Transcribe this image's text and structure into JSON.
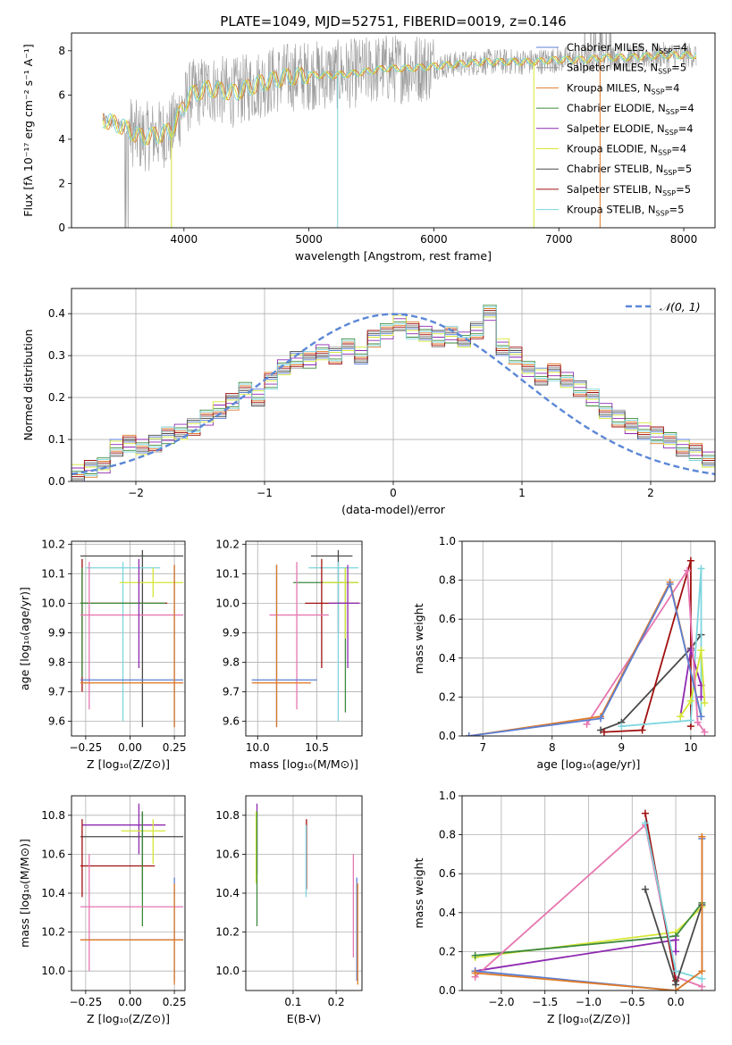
{
  "figure_title": "PLATE=1049, MJD=52751, FIBERID=0019, z=0.146",
  "colors": {
    "Chabrier MILES": "#5b7fd3",
    "Salpeter MILES": "#9a9a9a",
    "Kroupa MILES": "#e07b28",
    "Chabrier ELODIE": "#3c8a3c",
    "Salpeter ELODIE": "#8e2ab0",
    "Kroupa ELODIE": "#d5e635",
    "Chabrier STELIB": "#4a4a4a",
    "Salpeter STELIB": "#a01010",
    "Kroupa STELIB": "#7dd5de",
    "pink": "#e676b0",
    "normal": "#5b87d6"
  },
  "chart_data": [
    {
      "id": "spectrum",
      "type": "line",
      "xlabel": "wavelength [Angstrom, rest frame]",
      "ylabel": "Flux [fλ 10⁻¹⁷ erg cm⁻² s⁻¹ A⁻¹]",
      "xlim": [
        3100,
        8250
      ],
      "ylim": [
        0,
        8.8
      ],
      "xticks": [
        4000,
        5000,
        6000,
        7000,
        8000
      ],
      "yticks": [
        0,
        2,
        4,
        6,
        8
      ],
      "grid": false,
      "legend_position": "right",
      "legend": [
        {
          "name": "Chabrier MILES",
          "sub": "N",
          "subs": "SSP",
          "val": "=4"
        },
        {
          "name": "Salpeter MILES",
          "sub": "N",
          "subs": "SSP",
          "val": "=5"
        },
        {
          "name": "Kroupa MILES",
          "sub": "N",
          "subs": "SSP",
          "val": "=4"
        },
        {
          "name": "Chabrier ELODIE",
          "sub": "N",
          "subs": "SSP",
          "val": "=4"
        },
        {
          "name": "Salpeter ELODIE",
          "sub": "N",
          "subs": "SSP",
          "val": "=4"
        },
        {
          "name": "Kroupa ELODIE",
          "sub": "N",
          "subs": "SSP",
          "val": "=4"
        },
        {
          "name": "Chabrier STELIB",
          "sub": "N",
          "subs": "SSP",
          "val": "=5"
        },
        {
          "name": "Salpeter STELIB",
          "sub": "N",
          "subs": "SSP",
          "val": "=5"
        },
        {
          "name": "Kroupa STELIB",
          "sub": "N",
          "subs": "SSP",
          "val": "=5"
        }
      ],
      "model_continuum": [
        [
          3350,
          4.9
        ],
        [
          3500,
          4.6
        ],
        [
          3650,
          4.1
        ],
        [
          3800,
          4.2
        ],
        [
          3900,
          4.4
        ],
        [
          3950,
          5.0
        ],
        [
          4050,
          6.0
        ],
        [
          4200,
          6.3
        ],
        [
          4400,
          6.1
        ],
        [
          4600,
          6.5
        ],
        [
          4800,
          6.8
        ],
        [
          5000,
          6.9
        ],
        [
          5200,
          6.9
        ],
        [
          5400,
          7.0
        ],
        [
          5600,
          7.2
        ],
        [
          5800,
          7.2
        ],
        [
          6000,
          7.3
        ],
        [
          6200,
          7.4
        ],
        [
          6400,
          7.5
        ],
        [
          6600,
          7.5
        ],
        [
          6800,
          7.5
        ],
        [
          7000,
          7.6
        ],
        [
          7200,
          7.6
        ],
        [
          7400,
          7.7
        ],
        [
          7600,
          7.7
        ],
        [
          7800,
          7.8
        ],
        [
          8000,
          7.8
        ],
        [
          8100,
          7.8
        ]
      ]
    },
    {
      "id": "residuals",
      "type": "bar",
      "xlabel": "(data-model)/error",
      "ylabel": "Normed distribution",
      "xlim": [
        -2.5,
        2.5
      ],
      "ylim": [
        0,
        0.46
      ],
      "xticks": [
        -2,
        -1,
        0,
        1,
        2
      ],
      "xticklabels": [
        "−2",
        "−1",
        "0",
        "1",
        "2"
      ],
      "yticks": [
        0,
        0.1,
        0.2,
        0.3,
        0.4
      ],
      "yticklabels": [
        "0.0",
        "0.1",
        "0.2",
        "0.3",
        "0.4"
      ],
      "grid": true,
      "legend_position": "top-right",
      "legend_label": "𝒩(0, 1)",
      "bin_width": 0.1,
      "bin_start": -2.5,
      "heights": [
        0.02,
        0.03,
        0.04,
        0.08,
        0.09,
        0.08,
        0.09,
        0.11,
        0.12,
        0.13,
        0.15,
        0.17,
        0.19,
        0.22,
        0.2,
        0.24,
        0.27,
        0.29,
        0.29,
        0.31,
        0.3,
        0.32,
        0.3,
        0.34,
        0.36,
        0.38,
        0.36,
        0.35,
        0.34,
        0.35,
        0.34,
        0.36,
        0.4,
        0.32,
        0.3,
        0.27,
        0.25,
        0.26,
        0.24,
        0.22,
        0.2,
        0.17,
        0.15,
        0.13,
        0.12,
        0.11,
        0.1,
        0.08,
        0.07,
        0.05
      ]
    },
    {
      "id": "age_vs_Z",
      "type": "scatter",
      "xlabel": "Z [log₁₀(Z/Z⊙)]",
      "ylabel": "age  [log₁₀(age/yr)]",
      "xlim": [
        -0.33,
        0.31
      ],
      "ylim": [
        9.55,
        10.21
      ],
      "xticks": [
        -0.25,
        0,
        0.25
      ],
      "xticklabels": [
        "−0.25",
        "0.00",
        "0.25"
      ],
      "yticks": [
        9.6,
        9.7,
        9.8,
        9.9,
        10.0,
        10.1,
        10.2
      ],
      "yticklabels": [
        "9.6",
        "9.7",
        "9.8",
        "9.9",
        "10.0",
        "10.1",
        "10.2"
      ],
      "grid": true,
      "points": [
        {
          "c": "Chabrier STELIB",
          "x": 0.07,
          "y": 10.16,
          "xl": -0.28,
          "xh": 0.3,
          "yl": 9.58,
          "yh": 10.18
        },
        {
          "c": "Kroupa STELIB",
          "x": -0.04,
          "y": 10.12,
          "xl": -0.25,
          "xh": 0.17,
          "yl": 9.6,
          "yh": 10.14
        },
        {
          "c": "Kroupa ELODIE",
          "x": 0.13,
          "y": 10.07,
          "xl": -0.06,
          "xh": 0.3,
          "yl": 10.02,
          "yh": 10.12
        },
        {
          "c": "Salpeter STELIB",
          "x": -0.27,
          "y": 10.0,
          "xl": -0.28,
          "xh": 0.21,
          "yl": 9.7,
          "yh": 10.15
        },
        {
          "c": "Chabrier ELODIE",
          "x": -0.27,
          "y": 10.0,
          "xl": -0.28,
          "xh": 0.2,
          "yl": 9.75,
          "yh": 10.12
        },
        {
          "c": "pink",
          "x": -0.23,
          "y": 9.96,
          "xl": -0.28,
          "xh": 0.3,
          "yl": 9.64,
          "yh": 10.14
        },
        {
          "c": "Salpeter ELODIE",
          "x": 0.05,
          "y": 10.0,
          "xl": 0.05,
          "xh": 0.05,
          "yl": 9.78,
          "yh": 10.15
        },
        {
          "c": "Chabrier MILES",
          "x": 0.25,
          "y": 9.74,
          "xl": -0.28,
          "xh": 0.3,
          "yl": 9.58,
          "yh": 10.13
        },
        {
          "c": "Kroupa MILES",
          "x": 0.25,
          "y": 9.73,
          "xl": -0.28,
          "xh": 0.3,
          "yl": 9.58,
          "yh": 10.13
        }
      ]
    },
    {
      "id": "age_vs_mass",
      "type": "scatter",
      "xlabel": "mass [log₁₀(M/M⊙)]",
      "ylabel": "",
      "xlim": [
        9.9,
        10.88
      ],
      "ylim": [
        9.55,
        10.21
      ],
      "xticks": [
        10.0,
        10.5
      ],
      "xticklabels": [
        "10.0",
        "10.5"
      ],
      "yticks": [
        9.6,
        9.7,
        9.8,
        9.9,
        10.0,
        10.1,
        10.2
      ],
      "yticklabels": [
        "9.6",
        "9.7",
        "9.8",
        "9.9",
        "10.0",
        "10.1",
        "10.2"
      ],
      "grid": true,
      "points": [
        {
          "c": "Chabrier STELIB",
          "x": 10.68,
          "y": 10.16,
          "xl": 10.45,
          "xh": 10.8,
          "yl": 9.9,
          "yh": 10.18
        },
        {
          "c": "Kroupa STELIB",
          "x": 10.68,
          "y": 10.12,
          "xl": 10.43,
          "xh": 10.85,
          "yl": 9.6,
          "yh": 10.14
        },
        {
          "c": "Chabrier ELODIE",
          "x": 10.74,
          "y": 10.07,
          "xl": 10.3,
          "xh": 10.85,
          "yl": 9.63,
          "yh": 10.12
        },
        {
          "c": "Kroupa ELODIE",
          "x": 10.74,
          "y": 10.07,
          "xl": 10.55,
          "xh": 10.85,
          "yl": 9.88,
          "yh": 10.12
        },
        {
          "c": "Salpeter STELIB",
          "x": 10.54,
          "y": 10.0,
          "xl": 10.4,
          "xh": 10.86,
          "yl": 9.78,
          "yh": 10.15
        },
        {
          "c": "Salpeter ELODIE",
          "x": 10.76,
          "y": 10.0,
          "xl": 10.6,
          "xh": 10.86,
          "yl": 9.78,
          "yh": 10.13
        },
        {
          "c": "pink",
          "x": 10.33,
          "y": 9.96,
          "xl": 10.1,
          "xh": 10.6,
          "yl": 9.64,
          "yh": 10.14
        },
        {
          "c": "Chabrier MILES",
          "x": 10.16,
          "y": 9.74,
          "xl": 9.95,
          "xh": 10.5,
          "yl": 9.58,
          "yh": 10.13
        },
        {
          "c": "Kroupa MILES",
          "x": 10.16,
          "y": 9.73,
          "xl": 9.95,
          "xh": 10.45,
          "yl": 9.58,
          "yh": 10.13
        }
      ]
    },
    {
      "id": "weight_vs_age",
      "type": "line",
      "xlabel": "age  [log₁₀(age/yr)]",
      "ylabel": "mass weight",
      "xlim": [
        6.7,
        10.35
      ],
      "ylim": [
        0,
        1.0
      ],
      "xticks": [
        7,
        8,
        9,
        10
      ],
      "xticklabels": [
        "7",
        "8",
        "9",
        "10"
      ],
      "yticks": [
        0,
        0.2,
        0.4,
        0.6,
        0.8,
        1.0
      ],
      "yticklabels": [
        "0.0",
        "0.2",
        "0.4",
        "0.6",
        "0.8",
        "1.0"
      ],
      "grid": true,
      "series": [
        {
          "c": "Chabrier STELIB",
          "x": [
            8.7,
            9.0,
            10.0,
            10.15
          ],
          "y": [
            0.03,
            0.07,
            0.45,
            0.52
          ]
        },
        {
          "c": "Salpeter STELIB",
          "x": [
            8.75,
            9.3,
            10.0,
            10.0
          ],
          "y": [
            0.02,
            0.03,
            0.9,
            0.05
          ]
        },
        {
          "c": "Kroupa STELIB",
          "x": [
            9.0,
            10.0,
            10.15,
            10.15
          ],
          "y": [
            0.05,
            0.08,
            0.86,
            0.1
          ]
        },
        {
          "c": "Salpeter ELODIE",
          "x": [
            9.85,
            10.0,
            10.15,
            10.15
          ],
          "y": [
            0.1,
            0.44,
            0.26,
            0.2
          ]
        },
        {
          "c": "Kroupa ELODIE",
          "x": [
            9.85,
            10.0,
            10.15,
            10.2
          ],
          "y": [
            0.1,
            0.18,
            0.44,
            0.17
          ]
        },
        {
          "c": "pink",
          "x": [
            8.5,
            9.95,
            10.1,
            10.2
          ],
          "y": [
            0.06,
            0.85,
            0.07,
            0.02
          ]
        },
        {
          "c": "Kroupa MILES",
          "x": [
            6.8,
            8.7,
            9.7,
            10.15
          ],
          "y": [
            0.0,
            0.1,
            0.79,
            0.1
          ]
        },
        {
          "c": "Chabrier MILES",
          "x": [
            6.8,
            8.7,
            9.7,
            10.15
          ],
          "y": [
            0.0,
            0.09,
            0.78,
            0.1
          ]
        }
      ]
    },
    {
      "id": "mass_vs_Z",
      "type": "scatter",
      "xlabel": "Z [log₁₀(Z/Z⊙)]",
      "ylabel": "mass [log₁₀(M/M⊙)]",
      "xlim": [
        -0.33,
        0.31
      ],
      "ylim": [
        9.9,
        10.9
      ],
      "xticks": [
        -0.25,
        0,
        0.25
      ],
      "xticklabels": [
        "−0.25",
        "0.00",
        "0.25"
      ],
      "yticks": [
        10.0,
        10.2,
        10.4,
        10.6,
        10.8
      ],
      "yticklabels": [
        "10.0",
        "10.2",
        "10.4",
        "10.6",
        "10.8"
      ],
      "grid": true,
      "points": [
        {
          "c": "Salpeter ELODIE",
          "x": 0.05,
          "y": 10.75,
          "xl": -0.27,
          "xh": 0.2,
          "yl": 10.6,
          "yh": 10.86
        },
        {
          "c": "Kroupa ELODIE",
          "x": 0.13,
          "y": 10.72,
          "xl": -0.05,
          "xh": 0.2,
          "yl": 10.55,
          "yh": 10.78
        },
        {
          "c": "Chabrier STELIB",
          "x": 0.07,
          "y": 10.69,
          "xl": -0.28,
          "xh": 0.3,
          "yl": 10.42,
          "yh": 10.82
        },
        {
          "c": "Salpeter STELIB",
          "x": -0.27,
          "y": 10.54,
          "xl": -0.28,
          "xh": 0.14,
          "yl": 10.38,
          "yh": 10.78
        },
        {
          "c": "Chabrier ELODIE",
          "x": 0.07,
          "y": 10.54,
          "xl": 0.07,
          "xh": 0.07,
          "yl": 10.23,
          "yh": 10.82
        },
        {
          "c": "pink",
          "x": -0.23,
          "y": 10.33,
          "xl": -0.28,
          "xh": 0.3,
          "yl": 10.0,
          "yh": 10.6
        },
        {
          "c": "Chabrier MILES",
          "x": 0.25,
          "y": 10.16,
          "xl": -0.28,
          "xh": 0.3,
          "yl": 9.95,
          "yh": 10.48
        },
        {
          "c": "Kroupa MILES",
          "x": 0.25,
          "y": 10.16,
          "xl": -0.28,
          "xh": 0.3,
          "yl": 9.93,
          "yh": 10.45
        }
      ]
    },
    {
      "id": "mass_vs_EBV",
      "type": "scatter",
      "xlabel": "E(B-V)",
      "ylabel": "",
      "xlim": [
        -0.01,
        0.26
      ],
      "ylim": [
        9.9,
        10.9
      ],
      "xticks": [
        0.1,
        0.2
      ],
      "xticklabels": [
        "0.1",
        "0.2"
      ],
      "yticks": [
        10.0,
        10.2,
        10.4,
        10.6,
        10.8
      ],
      "yticklabels": [
        "10.0",
        "10.2",
        "10.4",
        "10.6",
        "10.8"
      ],
      "grid": true,
      "points": [
        {
          "c": "Salpeter ELODIE",
          "x": 0.016,
          "y": 10.6,
          "yl": 10.5,
          "yh": 10.86
        },
        {
          "c": "Kroupa ELODIE",
          "x": 0.014,
          "y": 10.6,
          "yl": 10.45,
          "yh": 10.82
        },
        {
          "c": "Chabrier ELODIE",
          "x": 0.016,
          "y": 10.55,
          "yl": 10.23,
          "yh": 10.82
        },
        {
          "c": "Salpeter STELIB",
          "x": 0.131,
          "y": 10.6,
          "yl": 10.42,
          "yh": 10.78
        },
        {
          "c": "Kroupa STELIB",
          "x": 0.13,
          "y": 10.55,
          "yl": 10.38,
          "yh": 10.75
        },
        {
          "c": "pink",
          "x": 0.24,
          "y": 10.33,
          "yl": 10.07,
          "yh": 10.6
        },
        {
          "c": "Chabrier MILES",
          "x": 0.248,
          "y": 10.2,
          "yl": 9.95,
          "yh": 10.48
        },
        {
          "c": "Kroupa MILES",
          "x": 0.25,
          "y": 10.16,
          "yl": 9.93,
          "yh": 10.45
        }
      ]
    },
    {
      "id": "weight_vs_Z",
      "type": "line",
      "xlabel": "Z [log₁₀(Z/Z⊙)]",
      "ylabel": "mass weight",
      "xlim": [
        -2.45,
        0.45
      ],
      "ylim": [
        0,
        1.0
      ],
      "xticks": [
        -2.0,
        -1.5,
        -1.0,
        -0.5,
        0.0
      ],
      "xticklabels": [
        "−2.0",
        "−1.5",
        "−1.0",
        "−0.5",
        "0.0"
      ],
      "yticks": [
        0,
        0.2,
        0.4,
        0.6,
        0.8,
        1.0
      ],
      "yticklabels": [
        "0.0",
        "0.2",
        "0.4",
        "0.6",
        "0.8",
        "1.0"
      ],
      "grid": true,
      "series": [
        {
          "c": "Kroupa ELODIE",
          "x": [
            -2.3,
            0.0,
            0.3
          ],
          "y": [
            0.17,
            0.3,
            0.43
          ]
        },
        {
          "c": "Chabrier ELODIE",
          "x": [
            -2.3,
            0.0,
            0.3
          ],
          "y": [
            0.18,
            0.28,
            0.45
          ]
        },
        {
          "c": "Salpeter ELODIE",
          "x": [
            -2.3,
            0.0,
            0.0
          ],
          "y": [
            0.1,
            0.26,
            0.2
          ]
        },
        {
          "c": "pink",
          "x": [
            -2.3,
            -0.35,
            0.0,
            0.3
          ],
          "y": [
            0.07,
            0.85,
            0.07,
            0.02
          ]
        },
        {
          "c": "Salpeter STELIB",
          "x": [
            -0.35,
            0.0
          ],
          "y": [
            0.91,
            0.05
          ]
        },
        {
          "c": "Kroupa STELIB",
          "x": [
            -0.35,
            0.0,
            0.3
          ],
          "y": [
            0.86,
            0.1,
            0.06
          ]
        },
        {
          "c": "Chabrier STELIB",
          "x": [
            -0.35,
            0.0,
            0.3
          ],
          "y": [
            0.52,
            0.03,
            0.44
          ]
        },
        {
          "c": "Chabrier MILES",
          "x": [
            -2.3,
            0.0,
            0.3,
            0.3
          ],
          "y": [
            0.1,
            0.0,
            0.1,
            0.78
          ]
        },
        {
          "c": "Kroupa MILES",
          "x": [
            -2.3,
            0.0,
            0.3,
            0.3
          ],
          "y": [
            0.09,
            0.0,
            0.1,
            0.79
          ]
        }
      ]
    }
  ]
}
